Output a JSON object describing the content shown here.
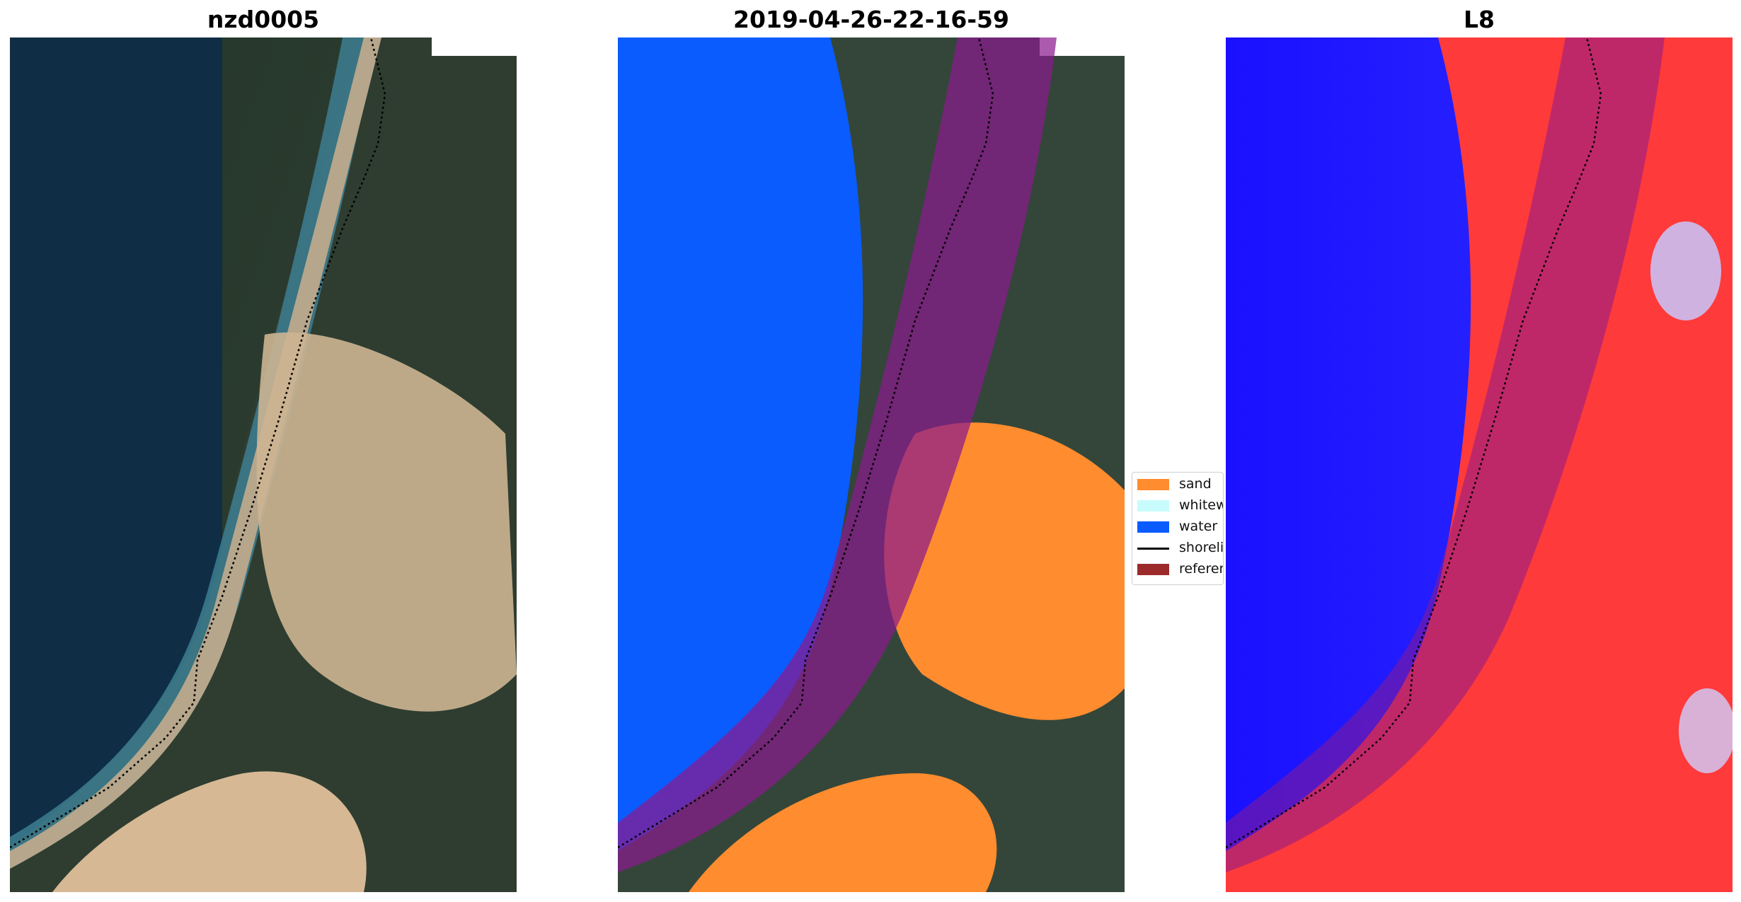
{
  "panels": [
    {
      "title": "nzd0005"
    },
    {
      "title": "2019-04-26-22-16-59"
    },
    {
      "title": "L8"
    }
  ],
  "legend": {
    "entries": [
      {
        "label": "sand",
        "color": "#ff8c2e",
        "kind": "patch"
      },
      {
        "label": "whitewater",
        "color": "#c8fcfc",
        "kind": "patch"
      },
      {
        "label": "water",
        "color": "#0a5cff",
        "kind": "patch"
      },
      {
        "label": "shoreline",
        "color": "#000000",
        "kind": "line"
      },
      {
        "label": "reference shoreline buffer",
        "color": "#9c2a2a",
        "kind": "patch"
      }
    ]
  },
  "colors": {
    "deep_water": "#0f2f44",
    "surf": "#3f7f93",
    "beach_sand": "#b9a98f",
    "dune_sand": "#d8bf9a",
    "vegetation": "#2a3a2c",
    "classified_sand": "#ff8c2e",
    "classified_water": "#0a5cff",
    "buffer": "#a0206a",
    "index_water": "#1a10ff",
    "index_land": "#ff3030"
  }
}
